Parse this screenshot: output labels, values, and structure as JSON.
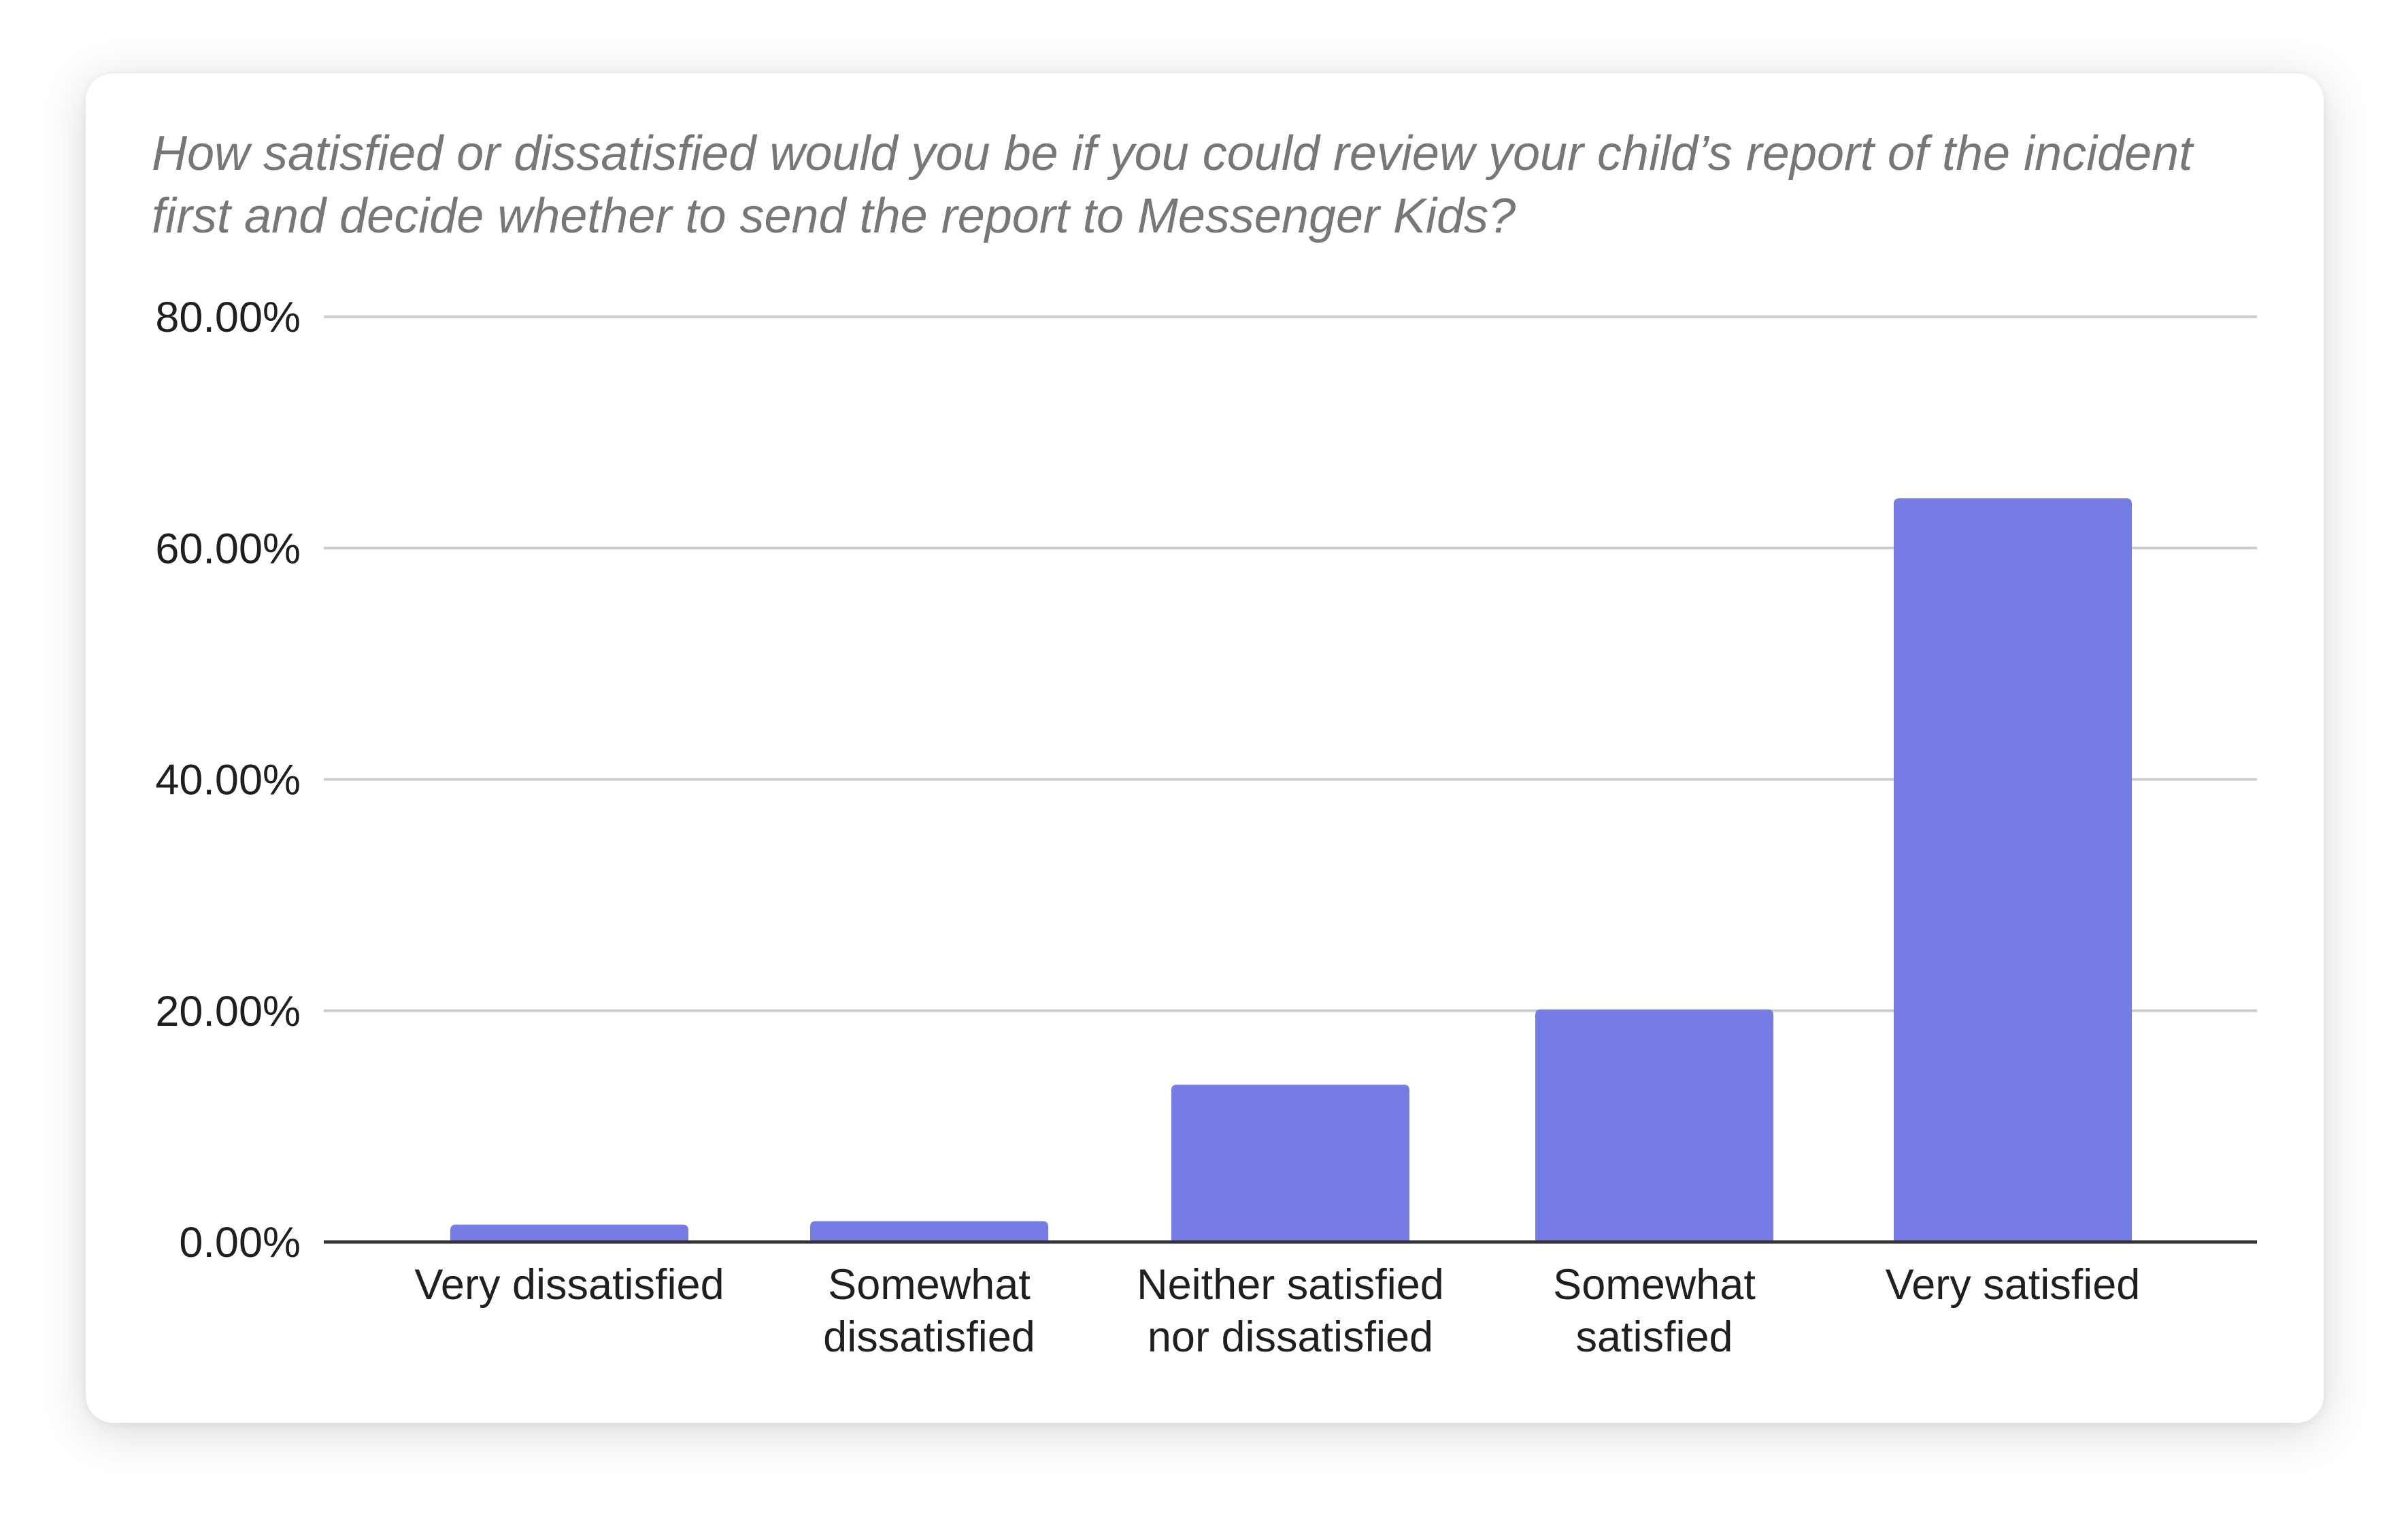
{
  "chart_data": {
    "type": "bar",
    "title": "How satisfied or dissatisfied would you be if you could review your child’s report of the incident first and decide whether to send the report to Messenger Kids?",
    "xlabel": "",
    "ylabel": "",
    "categories": [
      [
        "Very dissatisfied"
      ],
      [
        "Somewhat",
        "dissatisfied"
      ],
      [
        "Neither satisfied",
        "nor dissatisfied"
      ],
      [
        "Somewhat",
        "satisfied"
      ],
      [
        "Very satisfied"
      ]
    ],
    "values": [
      1.5,
      1.8,
      13.6,
      20.1,
      64.3
    ],
    "ylim": [
      0,
      80
    ],
    "yticks": [
      0,
      20,
      40,
      60,
      80
    ],
    "ytick_labels": [
      "0.00%",
      "20.00%",
      "40.00%",
      "60.00%",
      "80.00%"
    ],
    "grid": true,
    "legend": "none",
    "bar_color": "#757de4",
    "grid_color": "#cccccc",
    "axis_color": "#333333"
  }
}
